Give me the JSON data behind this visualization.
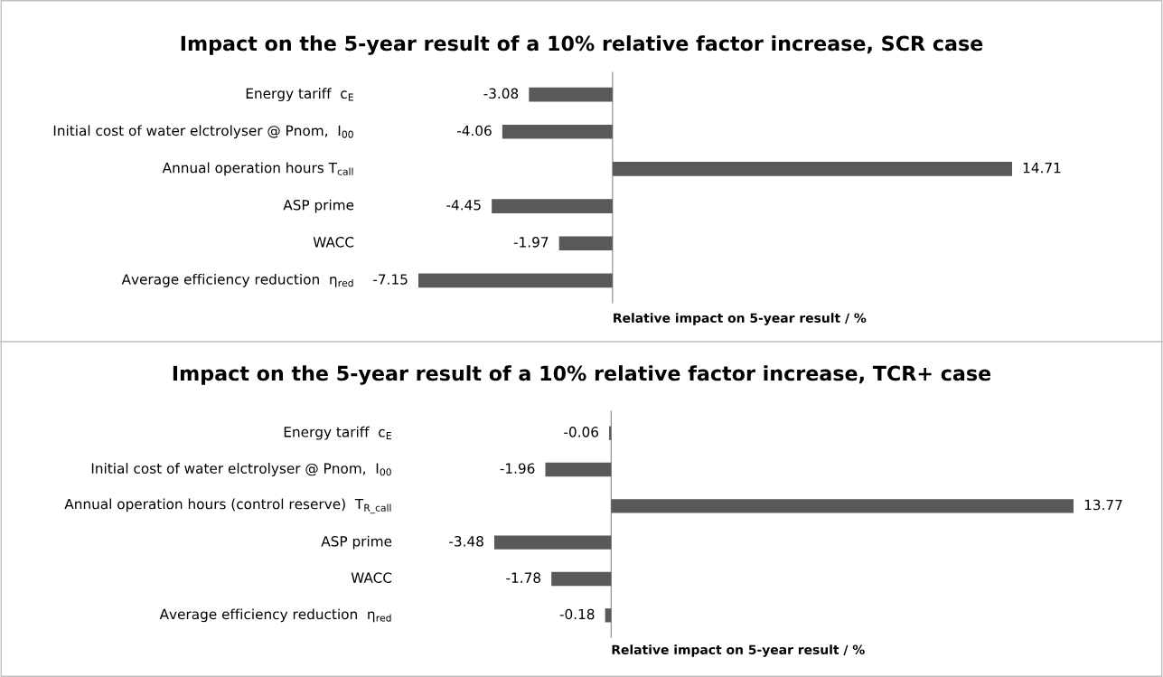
{
  "chart_data": [
    {
      "type": "bar",
      "orientation": "horizontal",
      "title": "Impact on the 5-year result of a 10% relative factor increase, SCR case",
      "xlabel": "Relative impact on 5-year result / %",
      "categories": [
        "Energy tariff  c$_{E}$",
        "Initial cost of water elctrolyser @ Pnom,  I$_{00}$",
        "Annual operation hours T$_{call}$",
        "ASP prime",
        "WACC",
        "Average efficiency reduction  η$_{red}$"
      ],
      "values": [
        -3.08,
        -4.06,
        14.71,
        -4.45,
        -1.97,
        -7.15
      ],
      "color": "#595959",
      "data_labels": true
    },
    {
      "type": "bar",
      "orientation": "horizontal",
      "title": "Impact on the 5-year result of a 10% relative factor increase, TCR+ case",
      "xlabel": "Relative impact on 5-year result / %",
      "categories": [
        "Energy tariff  c$_{E}$",
        "Initial cost of water elctrolyser @ Pnom,  I$_{00}$",
        "Annual operation hours (control reserve)  T$_{R_call}$",
        "ASP prime",
        "WACC",
        "Average efficiency reduction  η$_{red}$"
      ],
      "values": [
        -0.06,
        -1.96,
        13.77,
        -3.48,
        -1.78,
        -0.18
      ],
      "color": "#595959",
      "data_labels": true
    }
  ]
}
